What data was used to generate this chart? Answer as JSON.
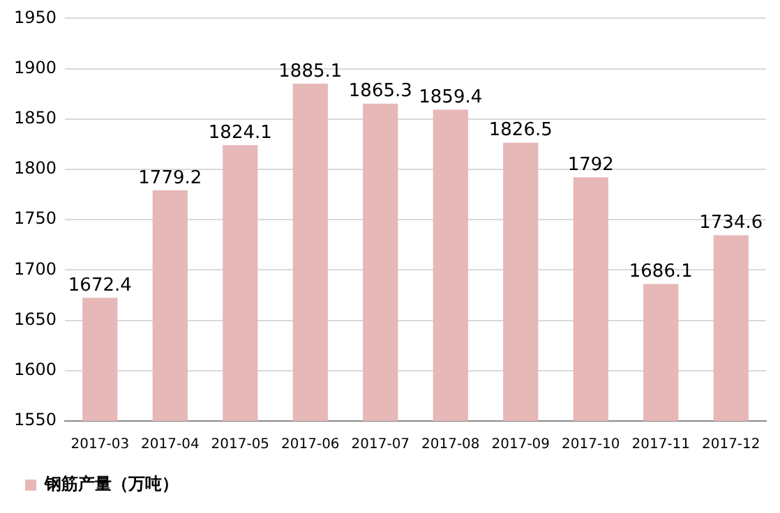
{
  "chart_data": {
    "type": "bar",
    "categories": [
      "2017-03",
      "2017-04",
      "2017-05",
      "2017-06",
      "2017-07",
      "2017-08",
      "2017-09",
      "2017-10",
      "2017-11",
      "2017-12"
    ],
    "series": [
      {
        "name": "钢筋产量（万吨）",
        "color": "#e6b8b7",
        "values": [
          1672.4,
          1779.2,
          1824.1,
          1885.1,
          1865.3,
          1859.4,
          1826.5,
          1792,
          1686.1,
          1734.6
        ]
      }
    ],
    "ylim": [
      1550,
      1950
    ],
    "yticks": [
      1550,
      1600,
      1650,
      1700,
      1750,
      1800,
      1850,
      1900,
      1950
    ],
    "grid": "y",
    "legend": "bottom left",
    "data_labels": true
  }
}
